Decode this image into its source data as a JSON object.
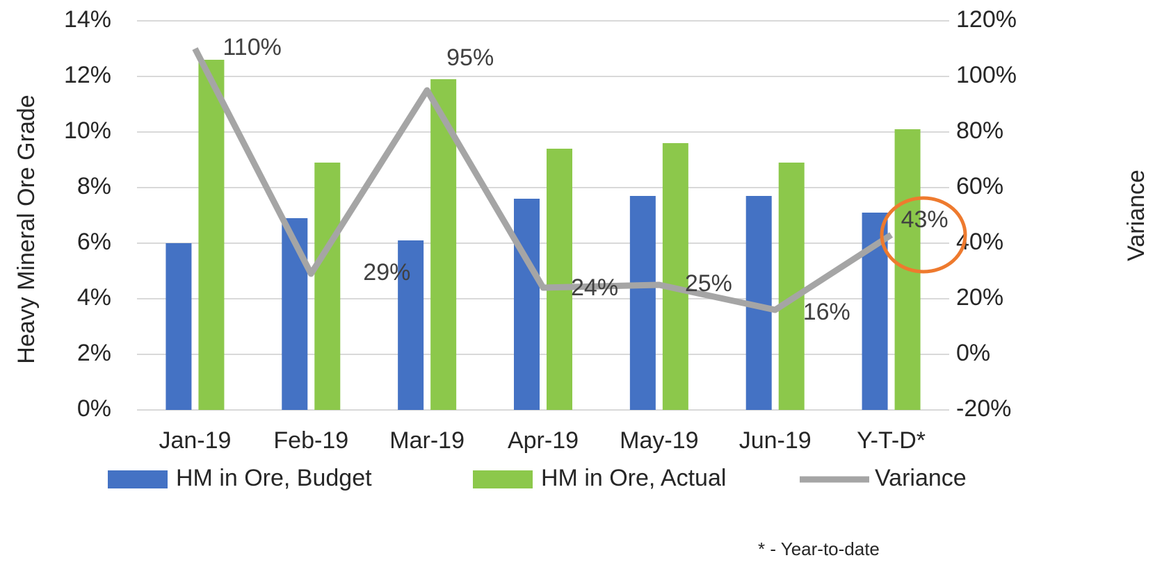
{
  "chart_data": {
    "type": "bar_line",
    "y_label": "Heavy Mineral Ore Grade",
    "y2_label": "Variance",
    "categories": [
      "Jan-19",
      "Feb-19",
      "Mar-19",
      "Apr-19",
      "May-19",
      "Jun-19",
      "Y-T-D*"
    ],
    "series": [
      {
        "name": "HM in Ore, Budget",
        "type": "bar",
        "color": "#4472c4",
        "values": [
          6.0,
          6.9,
          6.1,
          7.6,
          7.7,
          7.7,
          7.1
        ]
      },
      {
        "name": "HM in Ore, Actual",
        "type": "bar",
        "color": "#8cc84b",
        "values": [
          12.6,
          8.9,
          11.9,
          9.4,
          9.6,
          8.9,
          10.1
        ]
      },
      {
        "name": "Variance",
        "type": "line",
        "axis": "y2",
        "color": "#a5a5a5",
        "values": [
          110,
          29,
          95,
          24,
          25,
          16,
          43
        ],
        "value_labels": [
          "110%",
          "29%",
          "95%",
          "24%",
          "25%",
          "16%",
          "43%"
        ]
      }
    ],
    "ylim": [
      0,
      14
    ],
    "yticks": [
      {
        "value": 0,
        "label": "0%"
      },
      {
        "value": 2,
        "label": "2%"
      },
      {
        "value": 4,
        "label": "4%"
      },
      {
        "value": 6,
        "label": "6%"
      },
      {
        "value": 8,
        "label": "8%"
      },
      {
        "value": 10,
        "label": "10%"
      },
      {
        "value": 12,
        "label": "12%"
      },
      {
        "value": 14,
        "label": "14%"
      }
    ],
    "y2lim": [
      -20,
      120
    ],
    "y2ticks": [
      {
        "value": -20,
        "label": "-20%"
      },
      {
        "value": 0,
        "label": "0%"
      },
      {
        "value": 20,
        "label": "20%"
      },
      {
        "value": 40,
        "label": "40%"
      },
      {
        "value": 60,
        "label": "60%"
      },
      {
        "value": 80,
        "label": "80%"
      },
      {
        "value": 100,
        "label": "100%"
      },
      {
        "value": 120,
        "label": "120%"
      }
    ],
    "grid": true,
    "legend": "bottom",
    "footnote": "* - Year-to-date"
  }
}
